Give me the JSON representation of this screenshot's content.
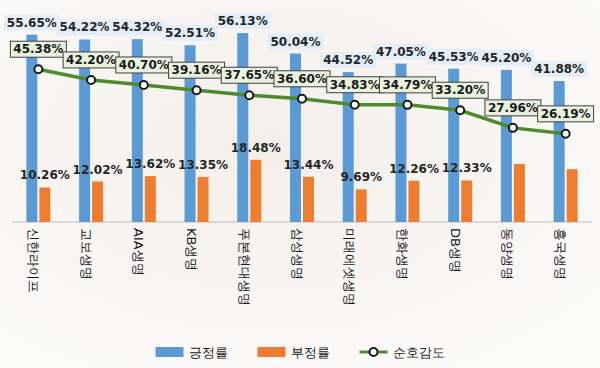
{
  "chart_data": {
    "type": "bar",
    "categories": [
      "신한라이프",
      "교보생명",
      "AIA생명",
      "KB생명",
      "푸본현대생명",
      "삼성생명",
      "미래에셋생명",
      "한화생명",
      "DB생명",
      "동양생명",
      "흥국생명"
    ],
    "series": [
      {
        "name": "긍정률",
        "type": "bar",
        "color": "#5b9bd5",
        "values": [
          55.65,
          54.22,
          54.32,
          52.51,
          56.13,
          50.04,
          44.52,
          47.05,
          45.53,
          45.2,
          41.88
        ],
        "value_labels": [
          "55.65%",
          "54.22%",
          "54.32%",
          "52.51%",
          "56.13%",
          "50.04%",
          "44.52%",
          "47.05%",
          "45.53%",
          "45.20%",
          "41.88%"
        ]
      },
      {
        "name": "부정률",
        "type": "bar",
        "color": "#ed7d31",
        "values": [
          10.26,
          12.02,
          13.62,
          13.35,
          18.48,
          13.44,
          9.69,
          12.26,
          12.33,
          17.24,
          15.69
        ],
        "value_labels": [
          "10.26%",
          "12.02%",
          "13.62%",
          "13.35%",
          "18.48%",
          "13.44%",
          "9.69%",
          "12.26%",
          "12.33%",
          null,
          null
        ]
      },
      {
        "name": "순호감도",
        "type": "line",
        "color": "#4e8a2e",
        "marker": "circle",
        "values": [
          45.38,
          42.2,
          40.7,
          39.16,
          37.65,
          36.6,
          34.83,
          34.79,
          33.2,
          27.96,
          26.19
        ],
        "value_labels": [
          "45.38%",
          "42.20%",
          "40.70%",
          "39.16%",
          "37.65%",
          "36.60%",
          "34.83%",
          "34.79%",
          "33.20%",
          "27.96%",
          "26.19%"
        ]
      }
    ],
    "ylim": [
      0,
      60
    ],
    "data_labels": true,
    "tick_labels": "x",
    "legend": "bottom",
    "grid": false
  }
}
